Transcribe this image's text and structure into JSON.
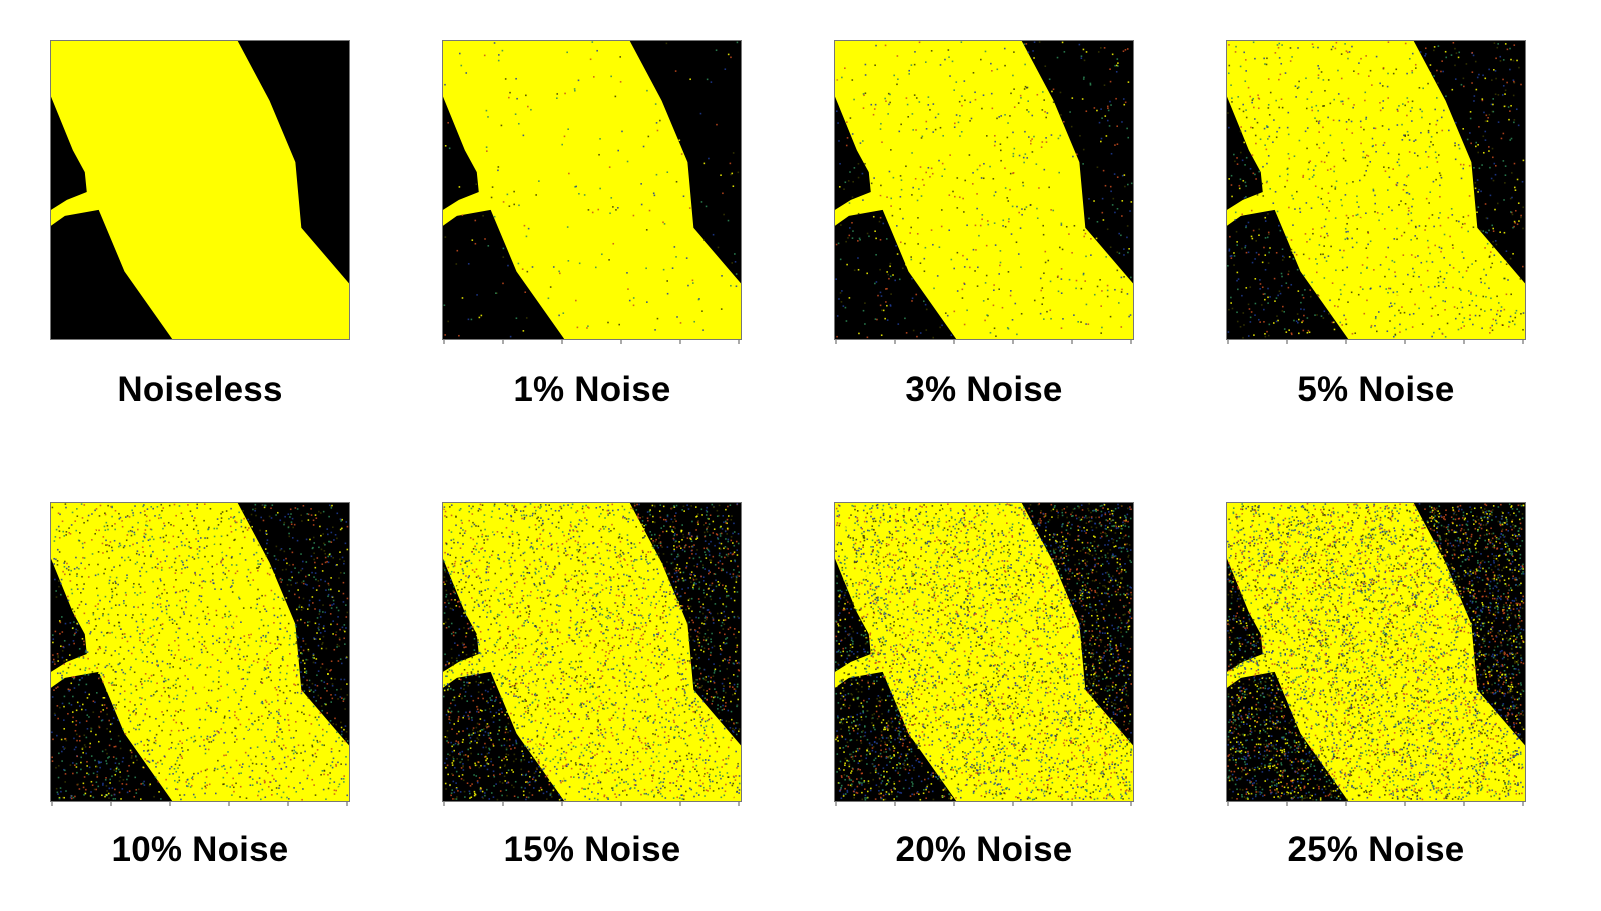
{
  "panels": [
    {
      "label": "Noiseless",
      "noise_percent": 0,
      "row": 1,
      "col": 1
    },
    {
      "label": "1% Noise",
      "noise_percent": 1,
      "row": 1,
      "col": 2
    },
    {
      "label": "3% Noise",
      "noise_percent": 3,
      "row": 1,
      "col": 3
    },
    {
      "label": "5% Noise",
      "noise_percent": 5,
      "row": 1,
      "col": 4
    },
    {
      "label": "10% Noise",
      "noise_percent": 10,
      "row": 2,
      "col": 1
    },
    {
      "label": "15% Noise",
      "noise_percent": 15,
      "row": 2,
      "col": 2
    },
    {
      "label": "20% Noise",
      "noise_percent": 20,
      "row": 2,
      "col": 3
    },
    {
      "label": "25% Noise",
      "noise_percent": 25,
      "row": 2,
      "col": 4
    }
  ],
  "colors": {
    "foreground": "#FFFF00",
    "background": "#000000",
    "noise_dark": "#3A3A00",
    "noise_red": "#C84B1E",
    "noise_green": "#2E8B57",
    "noise_blue": "#1E3C96",
    "noise_yellow": "#FFFF00"
  }
}
